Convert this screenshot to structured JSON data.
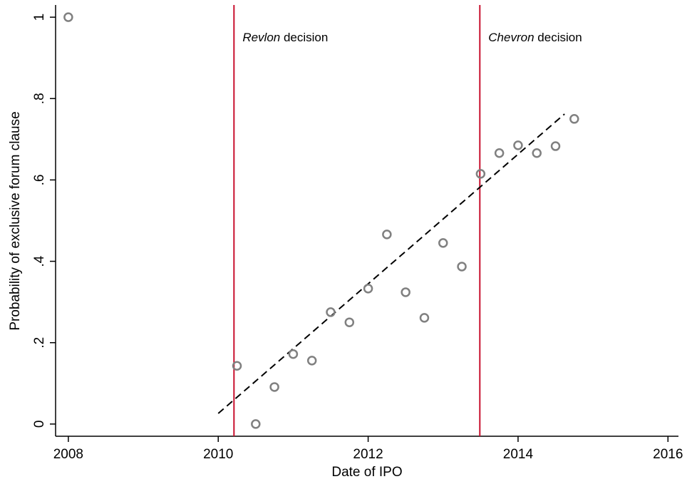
{
  "chart_data": {
    "type": "scatter",
    "x_label": "Date of IPO",
    "y_label": "Probability of exclusive forum clause",
    "xlim": [
      2007.83,
      2016.14
    ],
    "ylim": [
      -0.03,
      1.03
    ],
    "xticks": [
      2008,
      2010,
      2012,
      2014,
      2016
    ],
    "yticks": [
      0,
      {
        "value": 0.2,
        "label": ".2"
      },
      {
        "value": 0.4,
        "label": ".4"
      },
      {
        "value": 0.6,
        "label": ".6"
      },
      {
        "value": 0.8,
        "label": ".8"
      },
      1
    ],
    "points": {
      "color": "#808080",
      "x": [
        2008,
        2010.25,
        2010.5,
        2010.75,
        2011,
        2011.25,
        2011.5,
        2011.75,
        2012,
        2012.25,
        2012.5,
        2012.75,
        2013,
        2013.25,
        2013.5,
        2013.75,
        2014,
        2014.25,
        2014.5,
        2014.75
      ],
      "values": [
        1,
        0.143,
        0,
        0.091,
        0.172,
        0.156,
        0.275,
        0.25,
        0.333,
        0.466,
        0.324,
        0.261,
        0.445,
        0.387,
        0.615,
        0.666,
        0.685,
        0.666,
        0.683,
        0.75
      ]
    },
    "fit": {
      "color": "#000000",
      "style": "dashed",
      "x": [
        2010,
        2014.62
      ],
      "values": [
        0.026,
        0.762
      ]
    },
    "events": [
      {
        "x": 2010.21,
        "label_italic": "Revlon",
        "label": "decision",
        "color": "#c8102e"
      },
      {
        "x": 2013.49,
        "label_italic": "Chevron",
        "label": "decision",
        "color": "#c8102e"
      }
    ]
  }
}
